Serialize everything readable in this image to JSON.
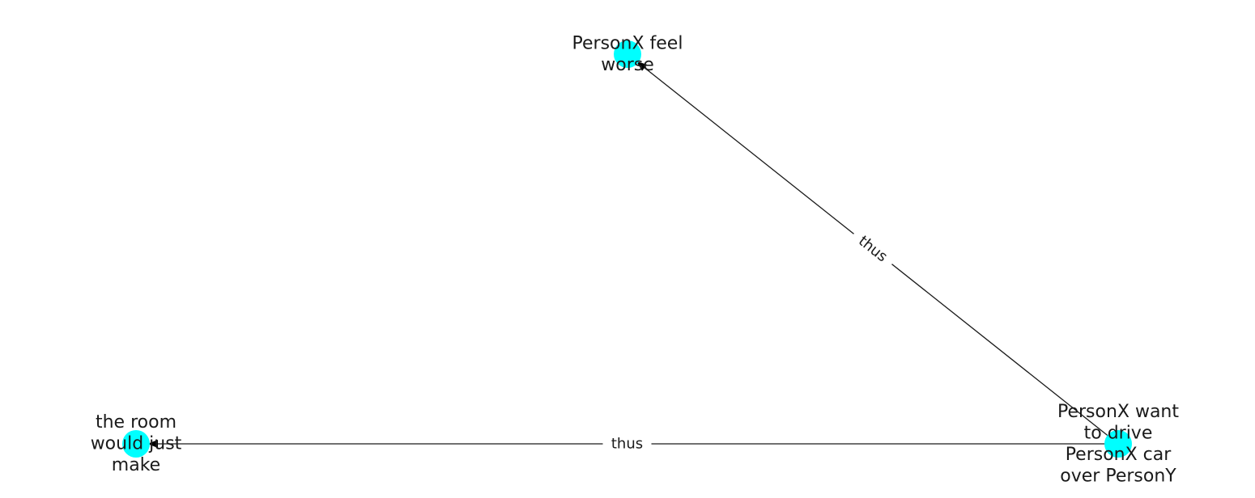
{
  "graph": {
    "colors": {
      "node_fill": "#00ffff",
      "edge_stroke": "#1a1a1a",
      "arrow_fill": "#000000",
      "label_text": "#1a1a1a",
      "background": "#ffffff"
    },
    "nodes": [
      {
        "id": "feel_worse",
        "lines": [
          "PersonX feel",
          "worse"
        ]
      },
      {
        "id": "room",
        "lines": [
          "the room",
          "would just",
          "make"
        ]
      },
      {
        "id": "drive",
        "lines": [
          "PersonX want",
          "to drive",
          "PersonX car",
          "over PersonY"
        ]
      }
    ],
    "edges": [
      {
        "source": "drive",
        "target": "feel_worse",
        "label": "thus"
      },
      {
        "source": "drive",
        "target": "room",
        "label": "thus"
      }
    ]
  }
}
